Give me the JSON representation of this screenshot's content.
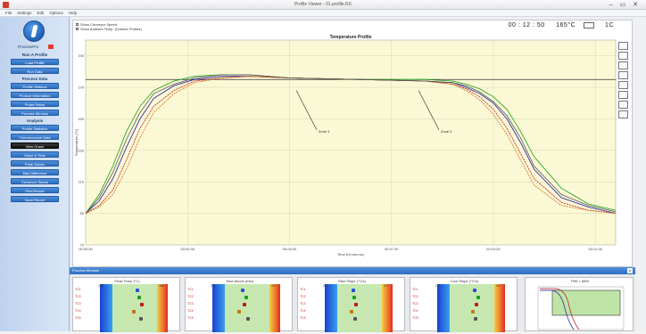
{
  "window": {
    "title": "Profile Viewer - 01.profile.RX",
    "buttons": "– ▭ ✕"
  },
  "menu": [
    "File",
    "Settings",
    "Edit",
    "Options",
    "Help"
  ],
  "sidebar": {
    "brand": "ProcessPro",
    "sections": [
      {
        "type": "head",
        "label": "Run A Profile"
      },
      {
        "type": "btn",
        "label": "Load Profile"
      },
      {
        "type": "btn",
        "label": "Run Data"
      },
      {
        "type": "head",
        "label": "Process Data"
      },
      {
        "type": "btn",
        "label": "Profile Settings"
      },
      {
        "type": "btn",
        "label": "Product Information"
      },
      {
        "type": "btn",
        "label": "Probe Setup"
      },
      {
        "type": "btn",
        "label": "Process Window"
      },
      {
        "type": "head",
        "label": "Analysis"
      },
      {
        "type": "btn",
        "label": "Profile Statistics"
      },
      {
        "type": "btn",
        "label": "Thermocouple Data"
      },
      {
        "type": "btn",
        "label": "View Graph",
        "dark": true
      },
      {
        "type": "btn",
        "label": "Slope & Time"
      },
      {
        "type": "btn",
        "label": "Peak Values"
      },
      {
        "type": "btn",
        "label": "Max Difference"
      },
      {
        "type": "btn",
        "label": "Conveyor Speed"
      },
      {
        "type": "btn",
        "label": "Print Report"
      },
      {
        "type": "btn",
        "label": "Save Report"
      }
    ]
  },
  "chart_header": {
    "options": [
      "Show Conveyor Speed",
      "Show Ambient Temp. (Surface Probes)"
    ],
    "time": "00 : 12 : 50",
    "temp": "165°C",
    "mode": "1C"
  },
  "chart_data": {
    "type": "line",
    "title": "Temperature Profile",
    "xlabel": "Time (hh:mm:ss)",
    "ylabel": "Temperature (°C)",
    "xlim": [
      0,
      780
    ],
    "ylim": [
      70,
      200
    ],
    "yticks": [
      70,
      90,
      110,
      130,
      150,
      170,
      190
    ],
    "xtick_labels": [
      "00:00:00",
      "00:02:30",
      "00:05:00",
      "00:07:30",
      "00:10:00",
      "00:12:30"
    ],
    "xticks": [
      0,
      150,
      300,
      450,
      600,
      750
    ],
    "ref_line": 175,
    "grid": true,
    "annotations": [
      {
        "text": "Zone 1",
        "x": 340,
        "y": 143
      },
      {
        "text": "Zone 2",
        "x": 520,
        "y": 143
      }
    ],
    "series": [
      {
        "color": "#1a1aa0",
        "x": [
          0,
          20,
          40,
          60,
          80,
          100,
          130,
          160,
          200,
          240,
          300,
          400,
          500,
          540,
          560,
          580,
          600,
          620,
          640,
          660,
          700,
          740,
          780
        ],
        "y": [
          90,
          98,
          112,
          132,
          150,
          163,
          171,
          175,
          177,
          177,
          176,
          175,
          174,
          173,
          170,
          166,
          160,
          150,
          135,
          118,
          100,
          94,
          90
        ]
      },
      {
        "color": "#c01818",
        "x": [
          0,
          20,
          40,
          60,
          80,
          100,
          130,
          160,
          200,
          240,
          300,
          400,
          500,
          540,
          560,
          580,
          600,
          620,
          640,
          660,
          700,
          740,
          780
        ],
        "y": [
          90,
          95,
          105,
          124,
          144,
          158,
          168,
          174,
          176,
          177,
          176,
          175,
          174,
          172,
          169,
          164,
          156,
          144,
          128,
          112,
          97,
          92,
          90
        ]
      },
      {
        "color": "#18a018",
        "x": [
          0,
          20,
          40,
          60,
          80,
          100,
          130,
          160,
          200,
          240,
          300,
          400,
          500,
          540,
          560,
          580,
          600,
          620,
          640,
          660,
          700,
          740,
          780
        ],
        "y": [
          90,
          102,
          120,
          142,
          158,
          168,
          174,
          177,
          178,
          178,
          176,
          175,
          175,
          174,
          172,
          169,
          164,
          156,
          142,
          126,
          106,
          96,
          92
        ]
      },
      {
        "color": "#d07010",
        "x": [
          0,
          20,
          40,
          60,
          80,
          100,
          130,
          160,
          200,
          240,
          300,
          400,
          500,
          540,
          560,
          580,
          600,
          620,
          640,
          660,
          700,
          740,
          780
        ],
        "y": [
          90,
          94,
          102,
          118,
          138,
          154,
          166,
          173,
          176,
          177,
          176,
          175,
          174,
          172,
          168,
          162,
          153,
          140,
          124,
          108,
          95,
          92,
          90
        ]
      },
      {
        "color": "#555555",
        "x": [
          0,
          20,
          40,
          60,
          80,
          100,
          130,
          160,
          200,
          240,
          300,
          400,
          500,
          540,
          560,
          580,
          600,
          620,
          640,
          660,
          700,
          740,
          780
        ],
        "y": [
          90,
          100,
          116,
          137,
          154,
          166,
          172,
          176,
          178,
          178,
          176,
          175,
          174,
          173,
          171,
          167,
          161,
          152,
          138,
          120,
          102,
          95,
          91
        ]
      }
    ]
  },
  "zone_panel": {
    "label": "Process Window",
    "close": "x",
    "cards": [
      {
        "title": "Peak Temp (°C)",
        "lim_l": "155",
        "lim_r": "185",
        "rows": [
          "TC1",
          "TC2",
          "TC3",
          "TC4",
          "TC5"
        ],
        "dots": [
          0.55,
          0.58,
          0.62,
          0.5,
          0.6
        ]
      },
      {
        "title": "Time Above (min)",
        "lim_l": "2.0",
        "lim_r": "4.0",
        "rows": [
          "TC1",
          "TC2",
          "TC3",
          "TC4",
          "TC5"
        ],
        "dots": [
          0.45,
          0.5,
          0.48,
          0.4,
          0.52
        ]
      },
      {
        "title": "Rise Slope (°C/s)",
        "lim_l": "0.5",
        "lim_r": "2.5",
        "rows": [
          "TC1",
          "TC2",
          "TC3",
          "TC4",
          "TC5"
        ],
        "dots": [
          0.42,
          0.44,
          0.46,
          0.4,
          0.45
        ]
      },
      {
        "title": "Cool Slope (°C/s)",
        "lim_l": "1.0",
        "lim_r": "3.0",
        "rows": [
          "TC1",
          "TC2",
          "TC3",
          "TC4",
          "TC5"
        ],
        "dots": [
          0.55,
          0.6,
          0.58,
          0.52,
          0.56
        ]
      }
    ],
    "mini_title": "PWI = 68%"
  },
  "colors": {
    "plot_bg": "#fbf8d6",
    "accent": "#2d6ec2"
  }
}
